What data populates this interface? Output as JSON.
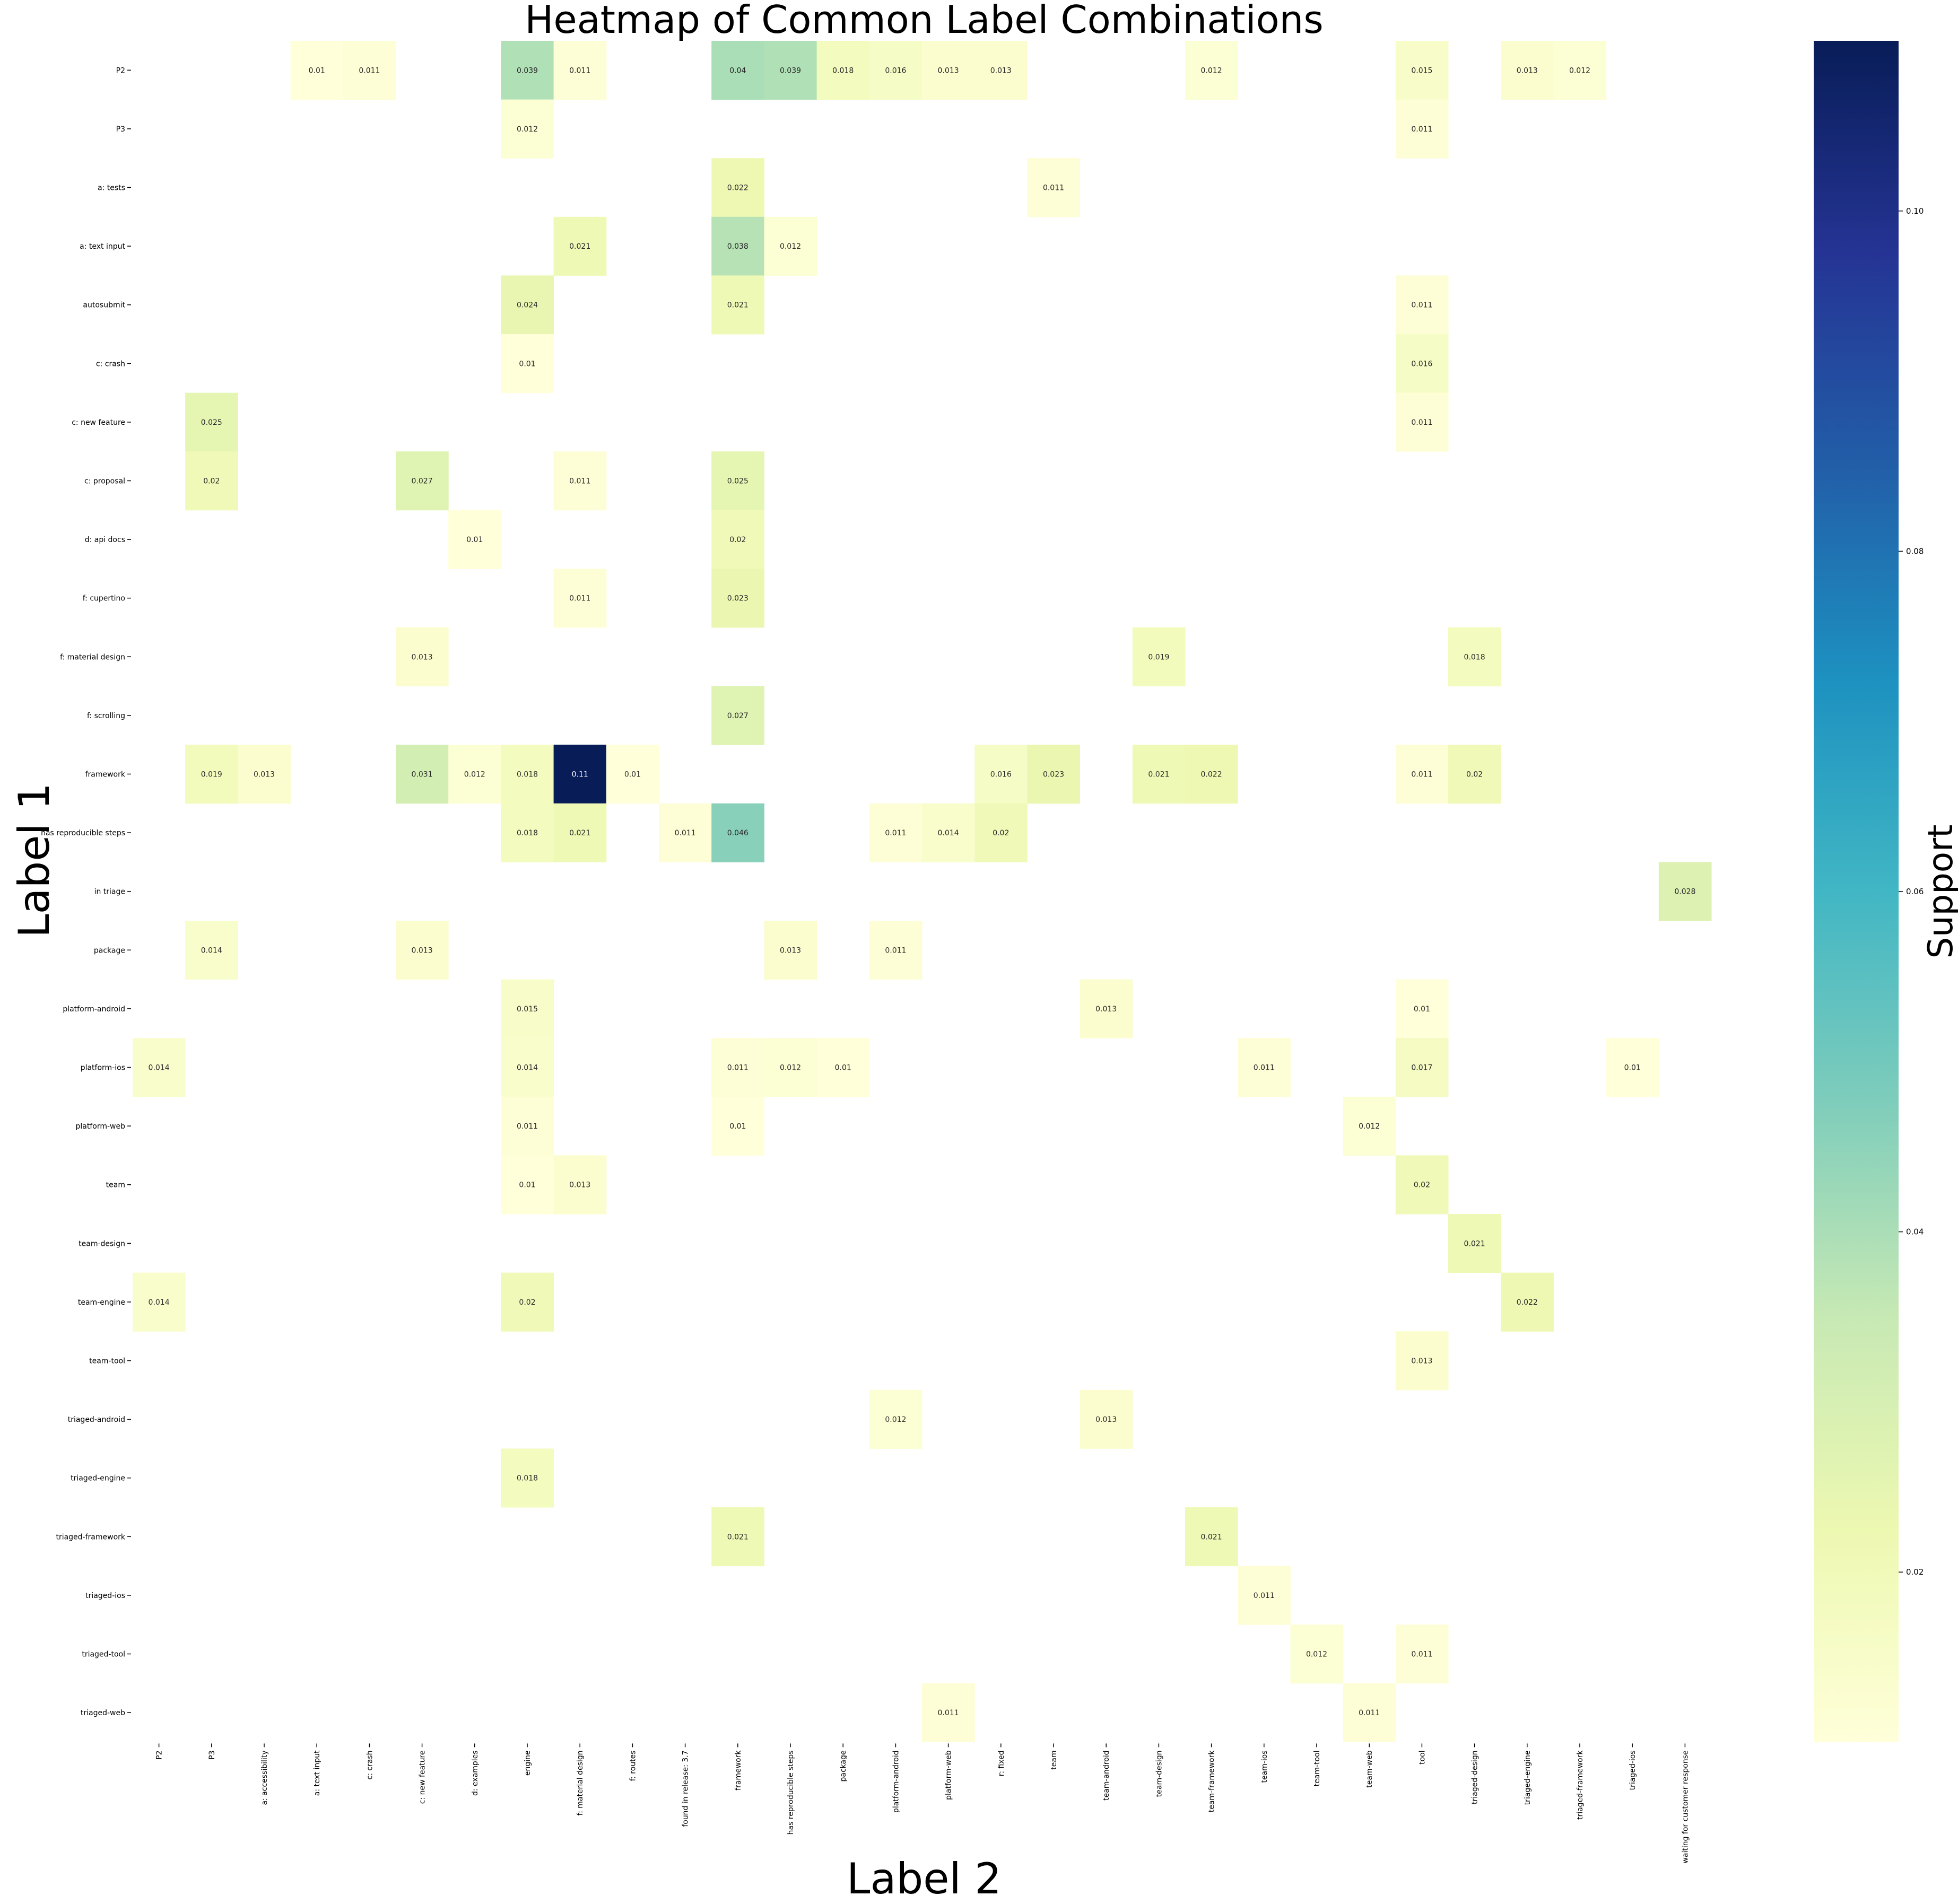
{
  "chart_data": {
    "type": "heatmap",
    "title": "Heatmap of Common Label Combinations",
    "xlabel": "Label 2",
    "ylabel": "Label 1",
    "colorbar_label": "Support",
    "colormap": "YlGnBu",
    "colormap_stops": [
      "#ffffd9",
      "#edf8b1",
      "#c7e9b4",
      "#7fcdbb",
      "#41b6c4",
      "#1d91c0",
      "#225ea8",
      "#253494",
      "#081d58"
    ],
    "value_range": [
      0.01,
      0.11
    ],
    "colorbar_ticks": [
      "0.02",
      "0.04",
      "0.06",
      "0.08",
      "0.10"
    ],
    "colorbar_tick_values": [
      0.02,
      0.04,
      0.06,
      0.08,
      0.1
    ],
    "rows": [
      "P2",
      "P3",
      "a: tests",
      "a: text input",
      "autosubmit",
      "c: crash",
      "c: new feature",
      "c: proposal",
      "d: api docs",
      "f: cupertino",
      "f: material design",
      "f: scrolling",
      "framework",
      "has reproducible steps",
      "in triage",
      "package",
      "platform-android",
      "platform-ios",
      "platform-web",
      "team",
      "team-design",
      "team-engine",
      "team-tool",
      "triaged-android",
      "triaged-engine",
      "triaged-framework",
      "triaged-ios",
      "triaged-tool",
      "triaged-web"
    ],
    "columns": [
      "P2",
      "P3",
      "a: accessibility",
      "a: text input",
      "c: crash",
      "c: new feature",
      "d: examples",
      "engine",
      "f: material design",
      "f: routes",
      "found in release: 3.7",
      "framework",
      "has reproducible steps",
      "package",
      "platform-android",
      "platform-web",
      "r: fixed",
      "team",
      "team-android",
      "team-design",
      "team-framework",
      "team-ios",
      "team-tool",
      "team-web",
      "tool",
      "triaged-design",
      "triaged-engine",
      "triaged-framework",
      "triaged-ios",
      "waiting for customer response"
    ],
    "cells": [
      {
        "row": "P2",
        "col": "a: text input",
        "value": "0.01"
      },
      {
        "row": "P2",
        "col": "c: crash",
        "value": "0.011"
      },
      {
        "row": "P2",
        "col": "engine",
        "value": "0.039"
      },
      {
        "row": "P2",
        "col": "f: material design",
        "value": "0.011"
      },
      {
        "row": "P2",
        "col": "framework",
        "value": "0.04"
      },
      {
        "row": "P2",
        "col": "has reproducible steps",
        "value": "0.039"
      },
      {
        "row": "P2",
        "col": "package",
        "value": "0.018"
      },
      {
        "row": "P2",
        "col": "platform-android",
        "value": "0.016"
      },
      {
        "row": "P2",
        "col": "platform-web",
        "value": "0.013"
      },
      {
        "row": "P2",
        "col": "r: fixed",
        "value": "0.013"
      },
      {
        "row": "P2",
        "col": "team-framework",
        "value": "0.012"
      },
      {
        "row": "P2",
        "col": "tool",
        "value": "0.015"
      },
      {
        "row": "P2",
        "col": "triaged-engine",
        "value": "0.013"
      },
      {
        "row": "P2",
        "col": "triaged-framework",
        "value": "0.012"
      },
      {
        "row": "P3",
        "col": "engine",
        "value": "0.012"
      },
      {
        "row": "P3",
        "col": "tool",
        "value": "0.011"
      },
      {
        "row": "a: tests",
        "col": "framework",
        "value": "0.022"
      },
      {
        "row": "a: tests",
        "col": "team",
        "value": "0.011"
      },
      {
        "row": "a: text input",
        "col": "f: material design",
        "value": "0.021"
      },
      {
        "row": "a: text input",
        "col": "framework",
        "value": "0.038"
      },
      {
        "row": "a: text input",
        "col": "has reproducible steps",
        "value": "0.012"
      },
      {
        "row": "autosubmit",
        "col": "engine",
        "value": "0.024"
      },
      {
        "row": "autosubmit",
        "col": "framework",
        "value": "0.021"
      },
      {
        "row": "autosubmit",
        "col": "tool",
        "value": "0.011"
      },
      {
        "row": "c: crash",
        "col": "engine",
        "value": "0.01"
      },
      {
        "row": "c: crash",
        "col": "tool",
        "value": "0.016"
      },
      {
        "row": "c: new feature",
        "col": "P3",
        "value": "0.025"
      },
      {
        "row": "c: new feature",
        "col": "tool",
        "value": "0.011"
      },
      {
        "row": "c: proposal",
        "col": "P3",
        "value": "0.02"
      },
      {
        "row": "c: proposal",
        "col": "c: new feature",
        "value": "0.027"
      },
      {
        "row": "c: proposal",
        "col": "f: material design",
        "value": "0.011"
      },
      {
        "row": "c: proposal",
        "col": "framework",
        "value": "0.025"
      },
      {
        "row": "d: api docs",
        "col": "d: examples",
        "value": "0.01"
      },
      {
        "row": "d: api docs",
        "col": "framework",
        "value": "0.02"
      },
      {
        "row": "f: cupertino",
        "col": "f: material design",
        "value": "0.011"
      },
      {
        "row": "f: cupertino",
        "col": "framework",
        "value": "0.023"
      },
      {
        "row": "f: material design",
        "col": "c: new feature",
        "value": "0.013"
      },
      {
        "row": "f: material design",
        "col": "team-design",
        "value": "0.019"
      },
      {
        "row": "f: material design",
        "col": "triaged-design",
        "value": "0.018"
      },
      {
        "row": "f: scrolling",
        "col": "framework",
        "value": "0.027"
      },
      {
        "row": "framework",
        "col": "P3",
        "value": "0.019"
      },
      {
        "row": "framework",
        "col": "a: accessibility",
        "value": "0.013"
      },
      {
        "row": "framework",
        "col": "c: new feature",
        "value": "0.031"
      },
      {
        "row": "framework",
        "col": "d: examples",
        "value": "0.012"
      },
      {
        "row": "framework",
        "col": "engine",
        "value": "0.018"
      },
      {
        "row": "framework",
        "col": "f: material design",
        "value": "0.11"
      },
      {
        "row": "framework",
        "col": "f: routes",
        "value": "0.01"
      },
      {
        "row": "framework",
        "col": "r: fixed",
        "value": "0.016"
      },
      {
        "row": "framework",
        "col": "team",
        "value": "0.023"
      },
      {
        "row": "framework",
        "col": "team-design",
        "value": "0.021"
      },
      {
        "row": "framework",
        "col": "team-framework",
        "value": "0.022"
      },
      {
        "row": "framework",
        "col": "tool",
        "value": "0.011"
      },
      {
        "row": "framework",
        "col": "triaged-design",
        "value": "0.02"
      },
      {
        "row": "has reproducible steps",
        "col": "engine",
        "value": "0.018"
      },
      {
        "row": "has reproducible steps",
        "col": "f: material design",
        "value": "0.021"
      },
      {
        "row": "has reproducible steps",
        "col": "found in release: 3.7",
        "value": "0.011"
      },
      {
        "row": "has reproducible steps",
        "col": "framework",
        "value": "0.046"
      },
      {
        "row": "has reproducible steps",
        "col": "platform-android",
        "value": "0.011"
      },
      {
        "row": "has reproducible steps",
        "col": "platform-web",
        "value": "0.014"
      },
      {
        "row": "has reproducible steps",
        "col": "r: fixed",
        "value": "0.02"
      },
      {
        "row": "in triage",
        "col": "waiting for customer response",
        "value": "0.028"
      },
      {
        "row": "package",
        "col": "P3",
        "value": "0.014"
      },
      {
        "row": "package",
        "col": "c: new feature",
        "value": "0.013"
      },
      {
        "row": "package",
        "col": "has reproducible steps",
        "value": "0.013"
      },
      {
        "row": "package",
        "col": "platform-android",
        "value": "0.011"
      },
      {
        "row": "platform-android",
        "col": "engine",
        "value": "0.015"
      },
      {
        "row": "platform-android",
        "col": "team-android",
        "value": "0.013"
      },
      {
        "row": "platform-android",
        "col": "tool",
        "value": "0.01"
      },
      {
        "row": "platform-ios",
        "col": "P2",
        "value": "0.014"
      },
      {
        "row": "platform-ios",
        "col": "engine",
        "value": "0.014"
      },
      {
        "row": "platform-ios",
        "col": "framework",
        "value": "0.011"
      },
      {
        "row": "platform-ios",
        "col": "has reproducible steps",
        "value": "0.012"
      },
      {
        "row": "platform-ios",
        "col": "package",
        "value": "0.01"
      },
      {
        "row": "platform-ios",
        "col": "team-ios",
        "value": "0.011"
      },
      {
        "row": "platform-ios",
        "col": "tool",
        "value": "0.017"
      },
      {
        "row": "platform-ios",
        "col": "triaged-ios",
        "value": "0.01"
      },
      {
        "row": "platform-web",
        "col": "engine",
        "value": "0.011"
      },
      {
        "row": "platform-web",
        "col": "framework",
        "value": "0.01"
      },
      {
        "row": "platform-web",
        "col": "team-web",
        "value": "0.012"
      },
      {
        "row": "team",
        "col": "engine",
        "value": "0.01"
      },
      {
        "row": "team",
        "col": "f: material design",
        "value": "0.013"
      },
      {
        "row": "team",
        "col": "tool",
        "value": "0.02"
      },
      {
        "row": "team-design",
        "col": "triaged-design",
        "value": "0.021"
      },
      {
        "row": "team-engine",
        "col": "P2",
        "value": "0.014"
      },
      {
        "row": "team-engine",
        "col": "engine",
        "value": "0.02"
      },
      {
        "row": "team-engine",
        "col": "triaged-engine",
        "value": "0.022"
      },
      {
        "row": "team-tool",
        "col": "tool",
        "value": "0.013"
      },
      {
        "row": "triaged-android",
        "col": "platform-android",
        "value": "0.012"
      },
      {
        "row": "triaged-android",
        "col": "team-android",
        "value": "0.013"
      },
      {
        "row": "triaged-engine",
        "col": "engine",
        "value": "0.018"
      },
      {
        "row": "triaged-framework",
        "col": "framework",
        "value": "0.021"
      },
      {
        "row": "triaged-framework",
        "col": "team-framework",
        "value": "0.021"
      },
      {
        "row": "triaged-ios",
        "col": "team-ios",
        "value": "0.011"
      },
      {
        "row": "triaged-tool",
        "col": "team-tool",
        "value": "0.012"
      },
      {
        "row": "triaged-tool",
        "col": "tool",
        "value": "0.011"
      },
      {
        "row": "triaged-web",
        "col": "platform-web",
        "value": "0.011"
      },
      {
        "row": "triaged-web",
        "col": "team-web",
        "value": "0.011"
      }
    ]
  }
}
